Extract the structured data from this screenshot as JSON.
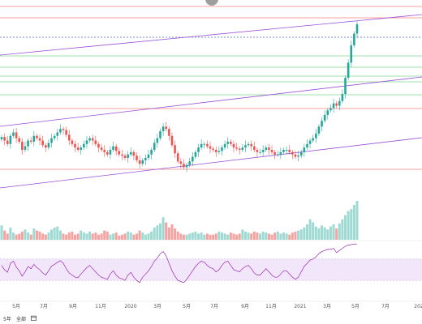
{
  "footer": {
    "interval": "5年",
    "all": "全部",
    "range_icon": "calendar-icon"
  },
  "colors": {
    "up": "#26a69a",
    "down": "#ef5350",
    "vol_up": "#9ed9d2",
    "vol_down": "#f5a3a1",
    "channel": "#9c4fd6",
    "hline_red": "#f08080",
    "hline_green": "#7fd88f",
    "current": "#4a6cd4",
    "rsi_line": "#9c27b0",
    "rsi_fill": "#f2e6fb"
  },
  "chart_data": {
    "type": "candlestick",
    "title": "",
    "x_tick_labels": [
      "5月",
      "7月",
      "9月",
      "11月",
      "2020",
      "3月",
      "5月",
      "7月",
      "9月",
      "11月",
      "2021",
      "3月",
      "5月",
      "7月",
      "202"
    ],
    "price": {
      "close": [
        161,
        158,
        155,
        162,
        165,
        160,
        157,
        150,
        153,
        158,
        157,
        162,
        160,
        158,
        154,
        152,
        156,
        160,
        162,
        165,
        168,
        167,
        163,
        158,
        155,
        152,
        150,
        152,
        155,
        158,
        160,
        158,
        155,
        152,
        150,
        148,
        146,
        150,
        153,
        149,
        146,
        145,
        143,
        146,
        148,
        145,
        141,
        138,
        141,
        143,
        146,
        150,
        156,
        160,
        166,
        170,
        168,
        162,
        154,
        147,
        140,
        138,
        135,
        137,
        140,
        144,
        148,
        152,
        155,
        155,
        153,
        151,
        150,
        148,
        149,
        152,
        155,
        157,
        155,
        152,
        151,
        150,
        152,
        154,
        155,
        153,
        150,
        148,
        148,
        150,
        152,
        150,
        148,
        146,
        146,
        148,
        150,
        150,
        148,
        146,
        144,
        145,
        148,
        152,
        155,
        158,
        160,
        164,
        170,
        175,
        180,
        184,
        186,
        190,
        188,
        192,
        198,
        212,
        225,
        240,
        250,
        258
      ],
      "channel_lines": 3,
      "horizontal_levels": 9
    },
    "volume": {
      "values": [
        14,
        9,
        6,
        12,
        7,
        5,
        6,
        8,
        10,
        7,
        5,
        11,
        9,
        8,
        6,
        5,
        7,
        10,
        12,
        13,
        9,
        6,
        5,
        7,
        8,
        5,
        6,
        9,
        7,
        6,
        8,
        6,
        7,
        5,
        6,
        9,
        8,
        5,
        6,
        7,
        4,
        5,
        6,
        8,
        7,
        5,
        6,
        9,
        7,
        5,
        6,
        8,
        12,
        14,
        16,
        22,
        17,
        12,
        15,
        11,
        8,
        6,
        5,
        5,
        6,
        7,
        8,
        6,
        7,
        5,
        6,
        5,
        5,
        6,
        8,
        7,
        6,
        5,
        7,
        6,
        5,
        6,
        10,
        8,
        7,
        6,
        8,
        7,
        6,
        8,
        7,
        6,
        5,
        7,
        8,
        6,
        7,
        6,
        5,
        7,
        8,
        9,
        10,
        12,
        15,
        20,
        17,
        13,
        11,
        14,
        12,
        10,
        13,
        15,
        11,
        16,
        20,
        24,
        28,
        30,
        34,
        38
      ]
    },
    "rsi": {
      "values": [
        58,
        50,
        45,
        62,
        66,
        55,
        48,
        38,
        46,
        56,
        52,
        60,
        54,
        50,
        44,
        40,
        48,
        57,
        60,
        64,
        67,
        62,
        52,
        44,
        40,
        36,
        35,
        42,
        48,
        54,
        58,
        52,
        46,
        40,
        36,
        34,
        32,
        42,
        48,
        40,
        35,
        33,
        30,
        40,
        45,
        36,
        30,
        26,
        36,
        42,
        48,
        56,
        66,
        72,
        80,
        84,
        76,
        62,
        48,
        38,
        30,
        28,
        26,
        32,
        40,
        48,
        56,
        62,
        66,
        64,
        58,
        54,
        52,
        46,
        50,
        58,
        64,
        66,
        58,
        50,
        48,
        46,
        52,
        56,
        58,
        52,
        44,
        40,
        40,
        46,
        52,
        46,
        40,
        36,
        36,
        42,
        48,
        48,
        42,
        36,
        32,
        36,
        46,
        56,
        62,
        68,
        70,
        74,
        80,
        84,
        86,
        88,
        88,
        90,
        82,
        86,
        90,
        94,
        96,
        97,
        98,
        98
      ]
    }
  }
}
